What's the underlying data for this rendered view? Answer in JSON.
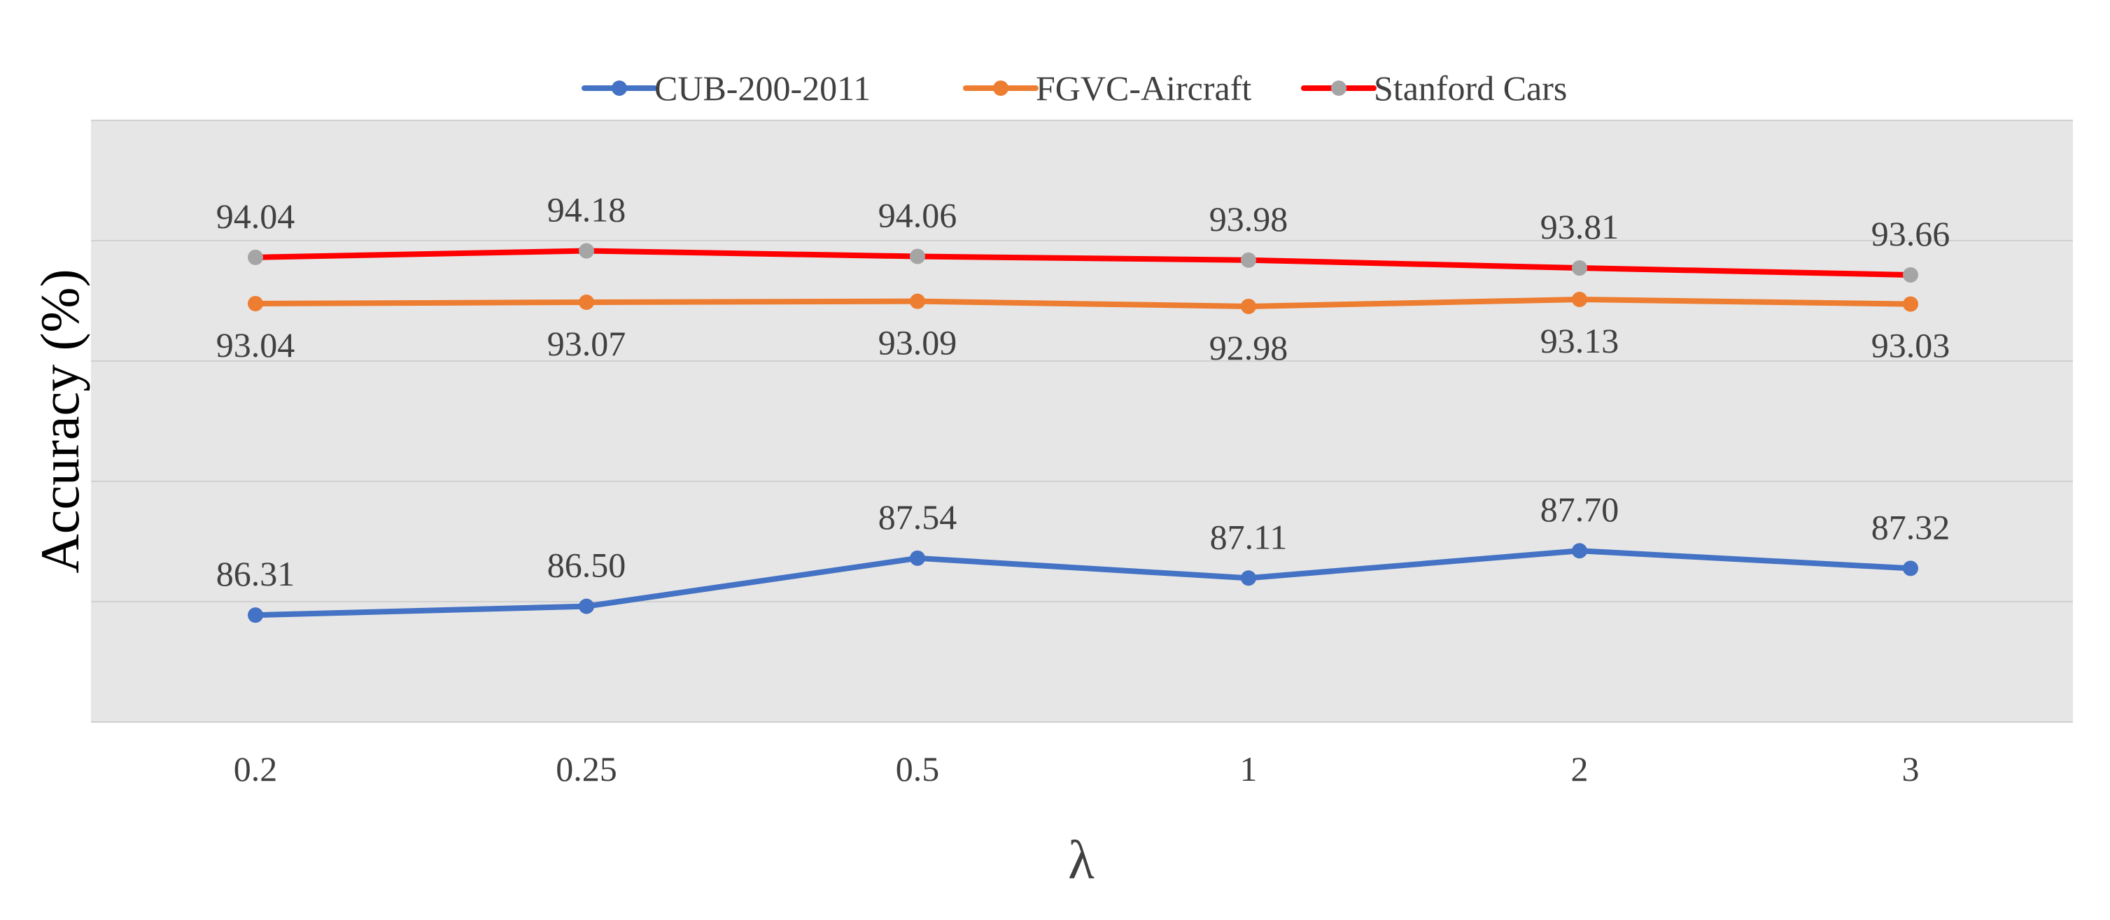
{
  "chart_data": {
    "type": "line",
    "title": "",
    "xlabel": "λ",
    "ylabel": "Accuracy (%)",
    "categories": [
      "0.2",
      "0.25",
      "0.5",
      "1",
      "2",
      "3"
    ],
    "ylim": [
      84,
      97
    ],
    "grid": true,
    "legend_position": "top-center",
    "series": [
      {
        "name": "CUB-200-2011",
        "values": [
          86.31,
          86.5,
          87.54,
          87.11,
          87.7,
          87.32
        ],
        "labels": [
          "86.31",
          "86.50",
          "87.54",
          "87.11",
          "87.70",
          "87.32"
        ],
        "line_color": "#4472C4",
        "marker_color": "#4472C4",
        "label_position": "above"
      },
      {
        "name": "FGVC-Aircraft",
        "values": [
          93.04,
          93.07,
          93.09,
          92.98,
          93.13,
          93.03
        ],
        "labels": [
          "93.04",
          "93.07",
          "93.09",
          "92.98",
          "93.13",
          "93.03"
        ],
        "line_color": "#ED7D31",
        "marker_color": "#ED7D31",
        "label_position": "below"
      },
      {
        "name": "Stanford Cars",
        "values": [
          94.04,
          94.18,
          94.06,
          93.98,
          93.81,
          93.66
        ],
        "labels": [
          "94.04",
          "94.18",
          "94.06",
          "93.98",
          "93.81",
          "93.66"
        ],
        "line_color": "#FF0000",
        "marker_color": "#A5A5A5",
        "label_position": "above"
      }
    ]
  },
  "style": {
    "plot_background": "#E7E6E6",
    "gridline_color": "#D0D0D0",
    "text_color": "#404040"
  }
}
